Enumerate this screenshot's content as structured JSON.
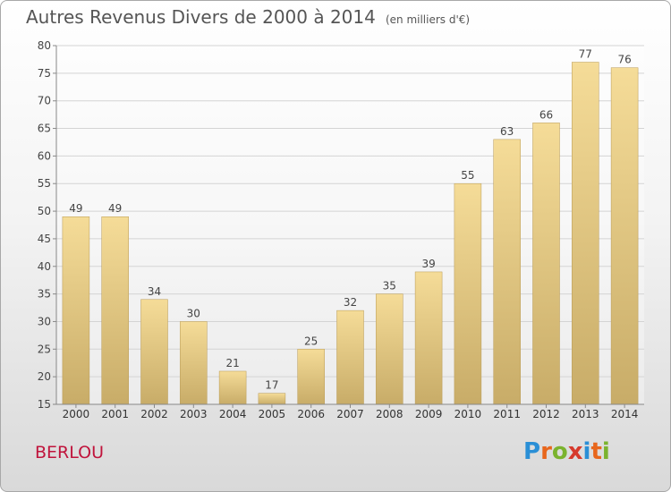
{
  "title": "Autres Revenus Divers de 2000 à 2014",
  "subtitle": "(en milliers d'€)",
  "place_name": "BERLOU",
  "logo": {
    "text": "Proxiti",
    "letter_colors": [
      "#2a8fd6",
      "#e8661c",
      "#7bb32e",
      "#d63a2c",
      "#2a8fd6",
      "#e8661c",
      "#7bb32e"
    ]
  },
  "chart_data": {
    "type": "bar",
    "categories": [
      "2000",
      "2001",
      "2002",
      "2003",
      "2004",
      "2005",
      "2006",
      "2007",
      "2008",
      "2009",
      "2010",
      "2011",
      "2012",
      "2013",
      "2014"
    ],
    "values": [
      49,
      49,
      34,
      30,
      21,
      17,
      25,
      32,
      35,
      39,
      55,
      63,
      66,
      77,
      76
    ],
    "data_labels": [
      "49",
      "49",
      "34",
      "30",
      "21",
      "17",
      "25",
      "32",
      "35",
      "39",
      "55",
      "63",
      "66",
      "77",
      "76"
    ],
    "ylim": [
      15,
      80
    ],
    "yticks": [
      "15",
      "20",
      "25",
      "30",
      "35",
      "40",
      "45",
      "50",
      "55",
      "60",
      "65",
      "70",
      "75",
      "80"
    ],
    "grid": true,
    "bar_color_top": "#f5dc98",
    "bar_color_bottom": "#c8ac68"
  }
}
